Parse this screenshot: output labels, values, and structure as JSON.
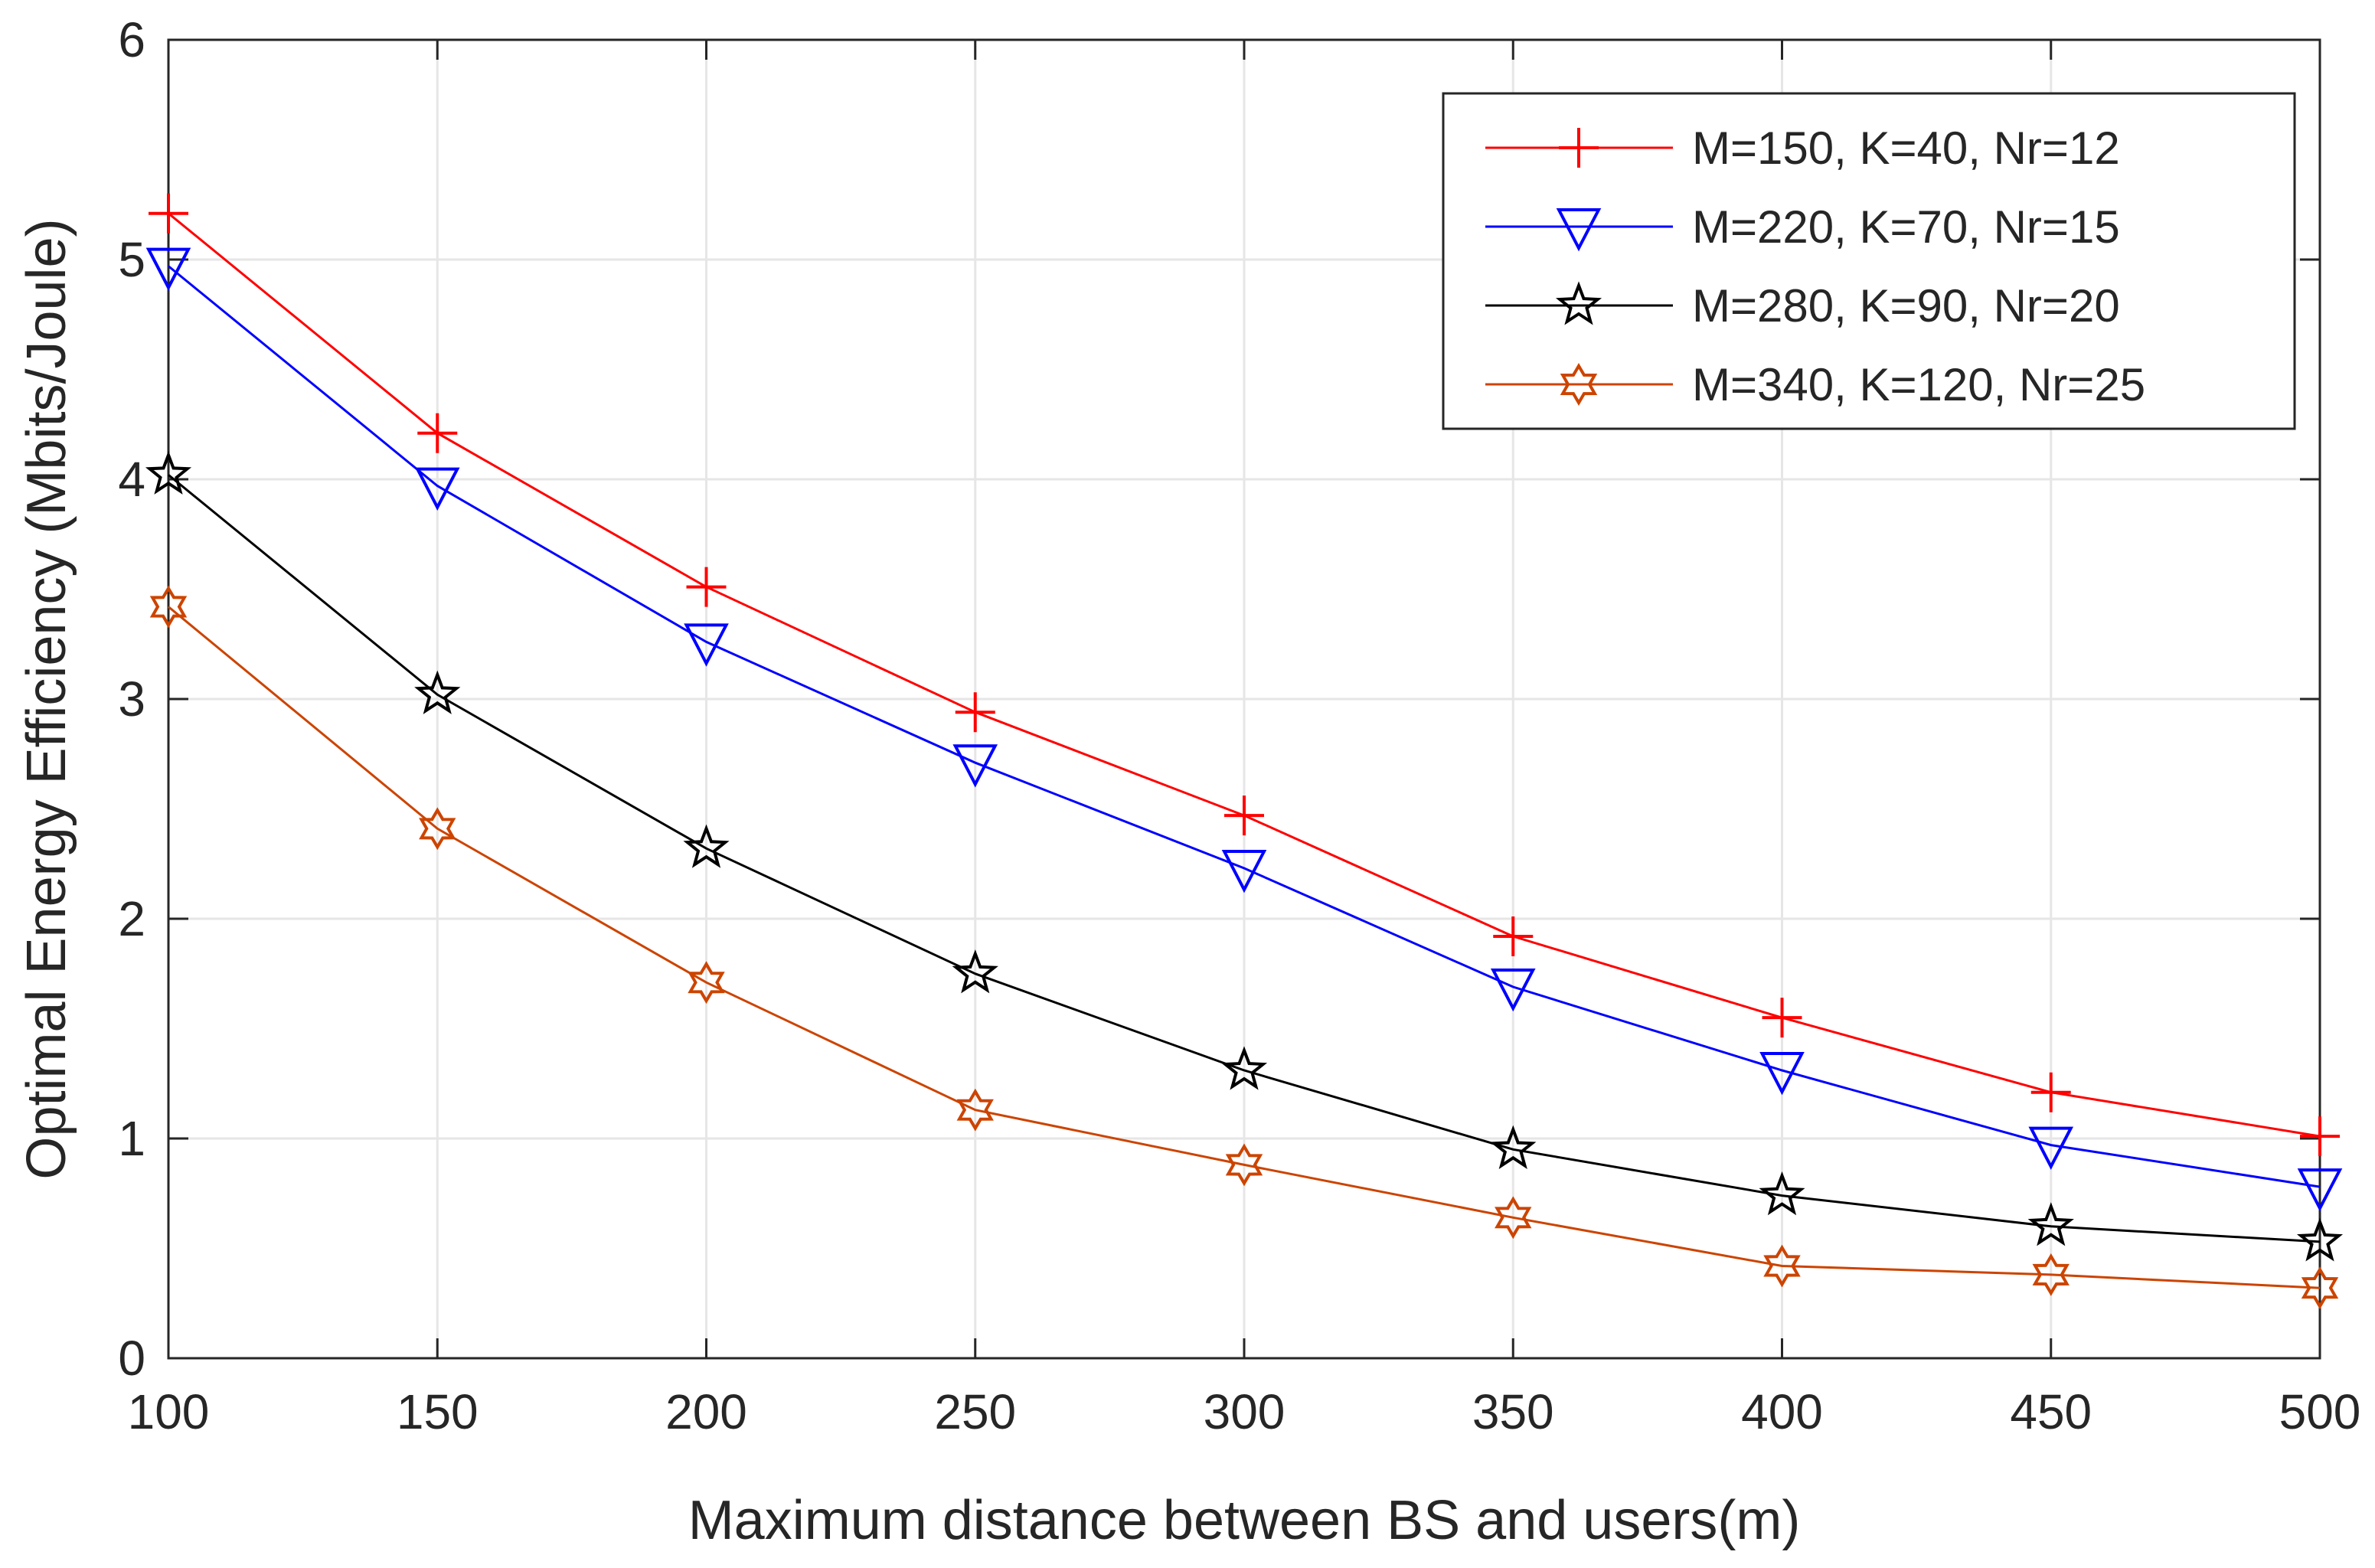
{
  "chart_data": {
    "type": "line",
    "title": "",
    "xlabel": "Maximum distance between BS and users(m)",
    "ylabel": "Optimal Energy Efficiency (Mbits/Joule)",
    "x": [
      100,
      150,
      200,
      250,
      300,
      350,
      400,
      450,
      500
    ],
    "xlim": [
      100,
      500
    ],
    "ylim": [
      0,
      6
    ],
    "xticks": [
      "100",
      "150",
      "200",
      "250",
      "300",
      "350",
      "400",
      "450",
      "500"
    ],
    "yticks": [
      "0",
      "1",
      "2",
      "3",
      "4",
      "5",
      "6"
    ],
    "grid": true,
    "legend_position": "top-right",
    "series": [
      {
        "name": "M=150, K=40, Nr=12",
        "color": "#ff0000",
        "marker": "plus",
        "values": [
          5.21,
          4.21,
          3.51,
          2.94,
          2.47,
          1.92,
          1.55,
          1.21,
          1.01
        ]
      },
      {
        "name": "M=220, K=70, Nr=15",
        "color": "#0000ff",
        "marker": "triangle-down",
        "values": [
          4.97,
          3.97,
          3.26,
          2.71,
          2.23,
          1.69,
          1.31,
          0.97,
          0.78
        ]
      },
      {
        "name": "M=280, K=90, Nr=20",
        "color": "#000000",
        "marker": "pentagram",
        "values": [
          4.02,
          3.02,
          2.32,
          1.75,
          1.31,
          0.95,
          0.74,
          0.6,
          0.53
        ]
      },
      {
        "name": "M=340, K=120, Nr=25",
        "color": "#cc4400",
        "marker": "hexagram",
        "values": [
          3.42,
          2.41,
          1.71,
          1.13,
          0.88,
          0.64,
          0.42,
          0.38,
          0.32
        ]
      }
    ]
  }
}
